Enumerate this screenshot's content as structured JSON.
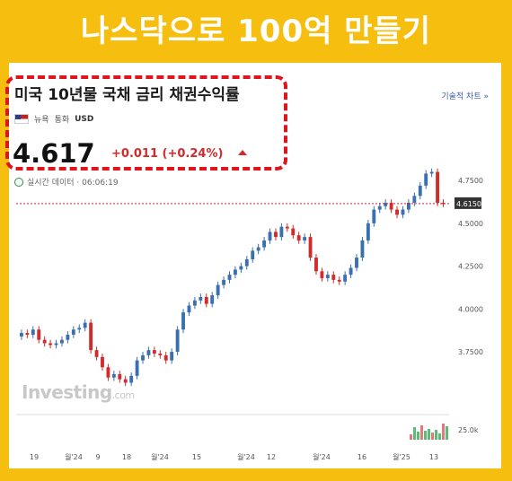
{
  "banner": {
    "title": "나스닥으로 100억 만들기"
  },
  "quote": {
    "title": "미국 10년물 국채 금리 채권수익률",
    "market": "뉴욕",
    "currency_label": "통화",
    "currency": "USD",
    "price": "4.617",
    "change": "+0.011 (+0.24%)",
    "realtime": "실시간 데이터 · 06:06:19",
    "technical_link": "기술적 차트 »"
  },
  "watermark": {
    "brand": "Investing",
    "suffix": ".com"
  },
  "colors": {
    "up": "#3a6fb0",
    "down": "#d32a2a",
    "banner": "#f6bf10",
    "volume_up": "#5dbb7a",
    "volume_down": "#e07a7a"
  },
  "chart_data": {
    "type": "candlestick",
    "y_ticks": [
      "4.7500",
      "4.5000",
      "4.2500",
      "4.0000",
      "3.7500"
    ],
    "y_range": [
      3.52,
      4.85
    ],
    "last_price_label": "4.6150",
    "last_price": 4.615,
    "volume_label": "25.0k",
    "x_ticks": [
      "19",
      "월'24",
      "9",
      "18",
      "월'24",
      "15",
      "월'24",
      "12",
      "월'24",
      "16",
      "월'25",
      "13"
    ],
    "closes": [
      3.86,
      3.85,
      3.88,
      3.82,
      3.8,
      3.79,
      3.8,
      3.82,
      3.85,
      3.88,
      3.89,
      3.92,
      3.76,
      3.72,
      3.66,
      3.6,
      3.62,
      3.59,
      3.57,
      3.61,
      3.7,
      3.73,
      3.76,
      3.74,
      3.73,
      3.7,
      3.75,
      3.88,
      3.98,
      4.02,
      4.05,
      4.07,
      4.03,
      4.08,
      4.14,
      4.17,
      4.2,
      4.23,
      4.25,
      4.29,
      4.34,
      4.36,
      4.4,
      4.45,
      4.42,
      4.48,
      4.47,
      4.43,
      4.4,
      4.42,
      4.3,
      4.22,
      4.18,
      4.2,
      4.17,
      4.16,
      4.2,
      4.24,
      4.3,
      4.4,
      4.5,
      4.58,
      4.6,
      4.62,
      4.58,
      4.55,
      4.58,
      4.62,
      4.66,
      4.72,
      4.79,
      4.8,
      4.62,
      4.615
    ]
  }
}
